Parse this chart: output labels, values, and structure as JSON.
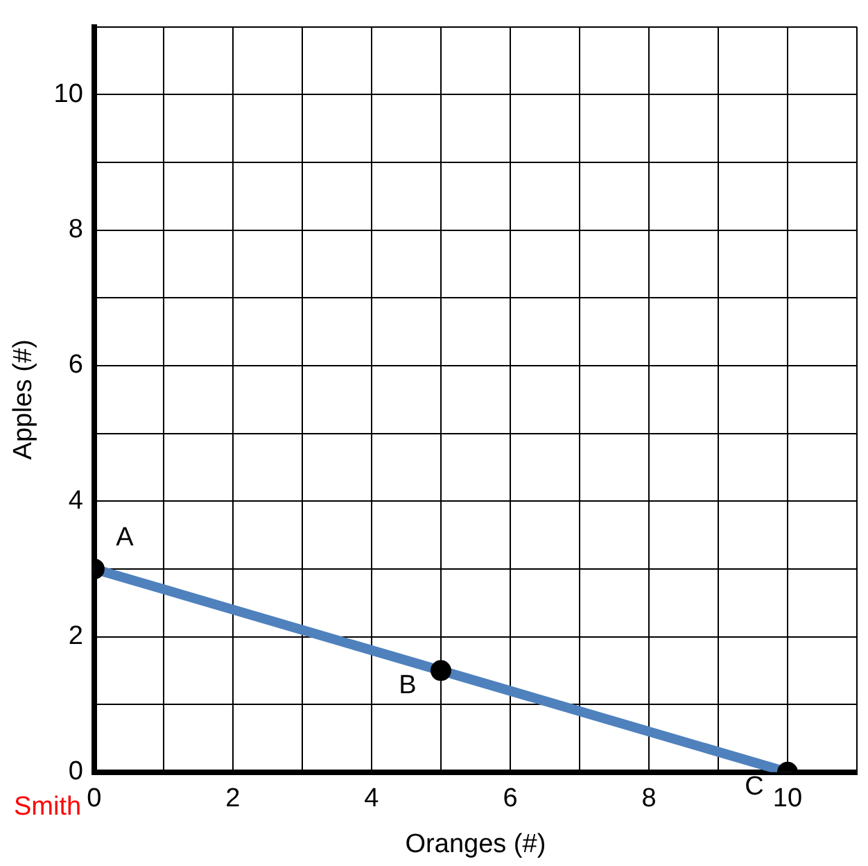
{
  "chart_data": {
    "type": "line",
    "xlabel": "Oranges (#)",
    "ylabel": "Apples (#)",
    "xlim": [
      0,
      11
    ],
    "ylim": [
      0,
      11
    ],
    "xticks": [
      0,
      {
        "value": 1,
        "label": null
      },
      2,
      {
        "value": 3,
        "label": null
      },
      4,
      {
        "value": 5,
        "label": null
      },
      6,
      {
        "value": 7,
        "label": null
      },
      8,
      {
        "value": 9,
        "label": null
      },
      10,
      {
        "value": 11,
        "label": null
      }
    ],
    "yticks": [
      0,
      {
        "value": 1,
        "label": null
      },
      2,
      {
        "value": 3,
        "label": null
      },
      4,
      {
        "value": 5,
        "label": null
      },
      6,
      {
        "value": 7,
        "label": null
      },
      8,
      {
        "value": 9,
        "label": null
      },
      10,
      {
        "value": 11,
        "label": null
      }
    ],
    "grid": true,
    "legend": false,
    "series": [
      {
        "type": "line",
        "color": "#4f81bd",
        "marker": "none",
        "x": [
          0,
          10
        ],
        "values": [
          3,
          0
        ]
      },
      {
        "type": "scatter",
        "color": "#000000",
        "marker": "circle",
        "x": [
          0,
          5,
          10
        ],
        "values": [
          3,
          1.5,
          0
        ]
      }
    ],
    "annotations": [
      {
        "text": "A",
        "x": 0,
        "y": 3
      },
      {
        "text": "B",
        "x": 5,
        "y": 1.5
      },
      {
        "text": "C",
        "x": 10,
        "y": 0
      },
      "Smith"
    ]
  }
}
